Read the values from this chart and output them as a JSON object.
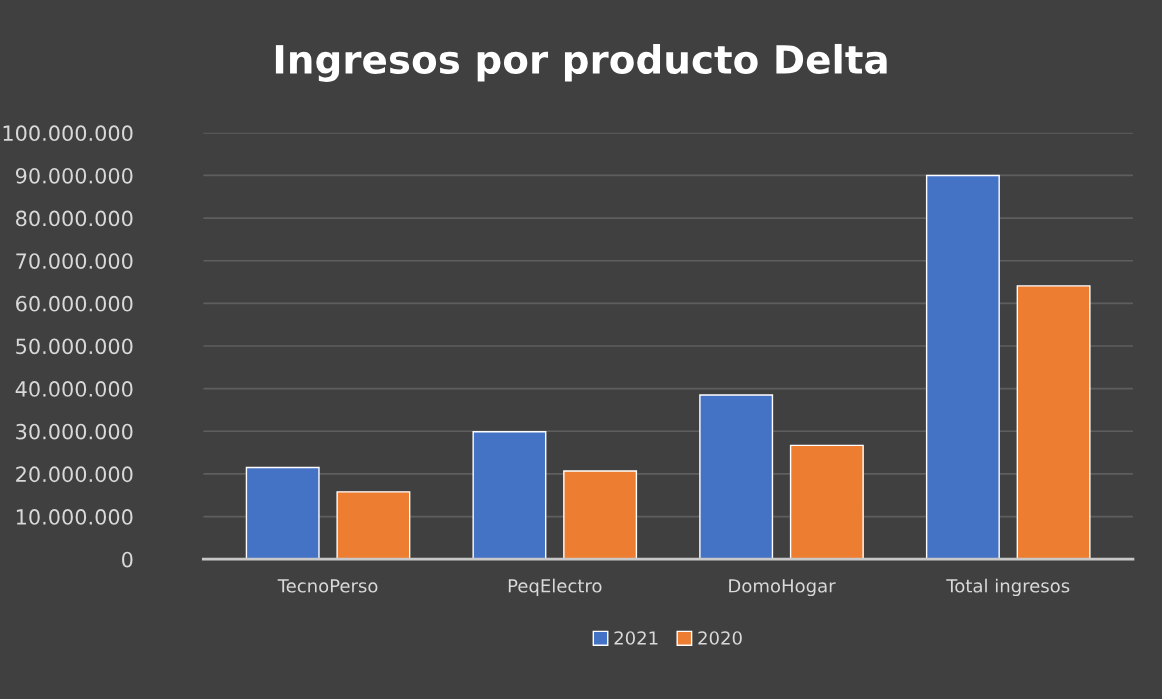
{
  "chart_data": {
    "type": "bar",
    "title": "Ingresos por producto Delta",
    "categories": [
      "TecnoPerso",
      "PeqElectro",
      "DomoHogar",
      "Total ingresos"
    ],
    "series": [
      {
        "name": "2021",
        "color": "#4472c4",
        "values": [
          21500000,
          29900000,
          38500000,
          90000000
        ]
      },
      {
        "name": "2020",
        "color": "#ed7d31",
        "values": [
          15800000,
          20700000,
          26700000,
          64100000
        ]
      }
    ],
    "ylim": [
      0,
      100000000
    ],
    "yticks": [
      0,
      {
        "value": 10000000,
        "label": "10.000.000"
      },
      {
        "value": 20000000,
        "label": "20.000.000"
      },
      {
        "value": 30000000,
        "label": "30.000.000"
      },
      {
        "value": 40000000,
        "label": "40.000.000"
      },
      {
        "value": 50000000,
        "label": "50.000.000"
      },
      {
        "value": 60000000,
        "label": "60.000.000"
      },
      {
        "value": 70000000,
        "label": "70.000.000"
      },
      {
        "value": 80000000,
        "label": "80.000.000"
      },
      {
        "value": 90000000,
        "label": "90.000.000"
      },
      {
        "value": 100000000,
        "label": "100.000.000"
      }
    ],
    "grid": "y",
    "legend": "bottom"
  }
}
